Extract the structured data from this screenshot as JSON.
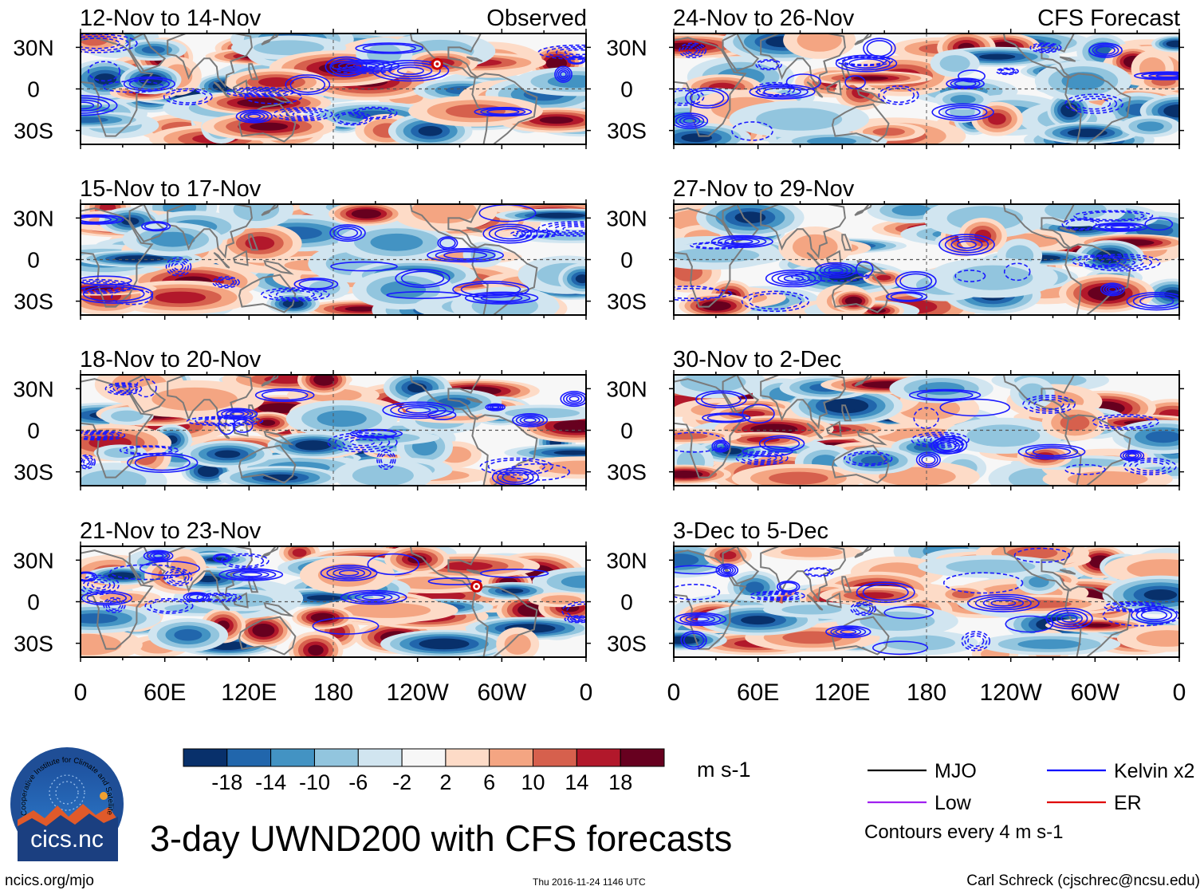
{
  "figure": {
    "title": "3-day UWND200 with CFS forecasts",
    "website": "ncics.org/mjo",
    "timestamp": "Thu 2016-11-24 1146 UTC",
    "author": "Carl Schreck (cjschrec@ncsu.edu)",
    "logo_text": "cics.nc",
    "logo_ring_text": "Cooperative Institute for Climate and Satellites"
  },
  "chart_data": {
    "type": "heatmap",
    "variable": "200-hPa zonal wind anomaly",
    "units": "m s-1",
    "x_ticks": [
      "0",
      "60E",
      "120E",
      "180",
      "120W",
      "60W",
      "0"
    ],
    "x_range": [
      0,
      360
    ],
    "y_ticks": [
      "30N",
      "0",
      "30S"
    ],
    "y_range": [
      -40,
      40
    ],
    "column_headers": {
      "left": "Observed",
      "right": "CFS Forecast"
    },
    "colorbar": {
      "ticks": [
        "-18",
        "-14",
        "-10",
        "-6",
        "-2",
        "2",
        "6",
        "10",
        "14",
        "18"
      ],
      "colors": [
        "#08306b",
        "#2166ac",
        "#4393c3",
        "#92c5de",
        "#d1e5f0",
        "#f7f7f7",
        "#fddbc7",
        "#f4a582",
        "#d6604d",
        "#b2182b",
        "#67001f"
      ]
    },
    "panels": [
      {
        "period": "12-Nov to 14-Nov",
        "source": "Observed",
        "storms": [
          {
            "lon": 254,
            "lat": 18
          }
        ]
      },
      {
        "period": "15-Nov to 17-Nov",
        "source": "Observed",
        "storms": []
      },
      {
        "period": "18-Nov to 20-Nov",
        "source": "Observed",
        "storms": []
      },
      {
        "period": "21-Nov to 23-Nov",
        "source": "Observed",
        "storms": [
          {
            "lon": 282,
            "lat": 11
          }
        ]
      },
      {
        "period": "24-Nov to 26-Nov",
        "source": "CFS Forecast",
        "storms": []
      },
      {
        "period": "27-Nov to 29-Nov",
        "source": "CFS Forecast",
        "storms": []
      },
      {
        "period": "30-Nov to 2-Dec",
        "source": "CFS Forecast",
        "storms": []
      },
      {
        "period": "3-Dec to 5-Dec",
        "source": "CFS Forecast",
        "storms": []
      }
    ],
    "legend": [
      {
        "label": "MJO",
        "color": "#000000"
      },
      {
        "label": "Kelvin x2",
        "color": "#0000ff"
      },
      {
        "label": "Low",
        "color": "#a020f0"
      },
      {
        "label": "ER",
        "color": "#e00000"
      }
    ],
    "contour_note": "Contours every 4 m s-1"
  }
}
